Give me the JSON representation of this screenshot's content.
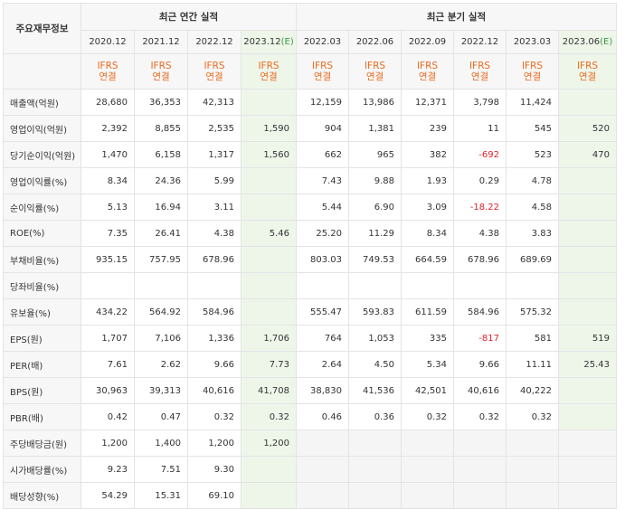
{
  "table": {
    "corner_label": "주요재무정보",
    "groups": {
      "annual": "최근 연간 실적",
      "quarterly": "최근 분기 실적"
    },
    "periods": [
      {
        "date": "2020.12",
        "est": ""
      },
      {
        "date": "2021.12",
        "est": ""
      },
      {
        "date": "2022.12",
        "est": ""
      },
      {
        "date": "2023.12",
        "est": "(E)"
      },
      {
        "date": "2022.03",
        "est": ""
      },
      {
        "date": "2022.06",
        "est": ""
      },
      {
        "date": "2022.09",
        "est": ""
      },
      {
        "date": "2022.12",
        "est": ""
      },
      {
        "date": "2023.03",
        "est": ""
      },
      {
        "date": "2023.06",
        "est": "(E)"
      }
    ],
    "ifrs_top": "IFRS",
    "ifrs_bottom": "연결",
    "rows": [
      {
        "label": "매출액(억원)",
        "values": [
          "28,680",
          "36,353",
          "42,313",
          "",
          "12,159",
          "13,986",
          "12,371",
          "3,798",
          "11,424",
          ""
        ]
      },
      {
        "label": "영업이익(억원)",
        "values": [
          "2,392",
          "8,855",
          "2,535",
          "1,590",
          "904",
          "1,381",
          "239",
          "11",
          "545",
          "520"
        ]
      },
      {
        "label": "당기순이익(억원)",
        "values": [
          "1,470",
          "6,158",
          "1,317",
          "1,560",
          "662",
          "965",
          "382",
          "-692",
          "523",
          "470"
        ]
      },
      {
        "label": "영업이익률(%)",
        "values": [
          "8.34",
          "24.36",
          "5.99",
          "",
          "7.43",
          "9.88",
          "1.93",
          "0.29",
          "4.78",
          ""
        ]
      },
      {
        "label": "순이익률(%)",
        "values": [
          "5.13",
          "16.94",
          "3.11",
          "",
          "5.44",
          "6.90",
          "3.09",
          "-18.22",
          "4.58",
          ""
        ]
      },
      {
        "label": "ROE(%)",
        "values": [
          "7.35",
          "26.41",
          "4.38",
          "5.46",
          "25.20",
          "11.29",
          "8.34",
          "4.38",
          "3.83",
          ""
        ]
      },
      {
        "label": "부채비율(%)",
        "values": [
          "935.15",
          "757.95",
          "678.96",
          "",
          "803.03",
          "749.53",
          "664.59",
          "678.96",
          "689.69",
          ""
        ]
      },
      {
        "label": "당좌비율(%)",
        "values": [
          "",
          "",
          "",
          "",
          "",
          "",
          "",
          "",
          "",
          ""
        ]
      },
      {
        "label": "유보율(%)",
        "values": [
          "434.22",
          "564.92",
          "584.96",
          "",
          "555.47",
          "593.83",
          "611.59",
          "584.96",
          "575.32",
          ""
        ]
      },
      {
        "label": "EPS(원)",
        "values": [
          "1,707",
          "7,106",
          "1,336",
          "1,706",
          "764",
          "1,053",
          "335",
          "-817",
          "581",
          "519"
        ]
      },
      {
        "label": "PER(배)",
        "values": [
          "7.61",
          "2.62",
          "9.66",
          "7.73",
          "2.64",
          "4.50",
          "5.34",
          "9.66",
          "11.11",
          "25.43"
        ]
      },
      {
        "label": "BPS(원)",
        "values": [
          "30,963",
          "39,313",
          "40,616",
          "41,708",
          "38,830",
          "41,536",
          "42,501",
          "40,616",
          "40,222",
          ""
        ]
      },
      {
        "label": "PBR(배)",
        "values": [
          "0.42",
          "0.47",
          "0.32",
          "0.32",
          "0.46",
          "0.36",
          "0.32",
          "0.32",
          "0.32",
          ""
        ]
      },
      {
        "label": "주당배당금(원)",
        "values": [
          "1,200",
          "1,400",
          "1,200",
          "1,200",
          null,
          null,
          null,
          null,
          null,
          null
        ]
      },
      {
        "label": "시가배당률(%)",
        "values": [
          "9.23",
          "7.51",
          "9.30",
          "",
          null,
          null,
          null,
          null,
          null,
          null
        ]
      },
      {
        "label": "배당성향(%)",
        "values": [
          "54.29",
          "15.31",
          "69.10",
          "",
          null,
          null,
          null,
          null,
          null,
          null
        ]
      }
    ],
    "group_breaks": [
      0,
      3,
      6,
      9,
      13
    ]
  }
}
